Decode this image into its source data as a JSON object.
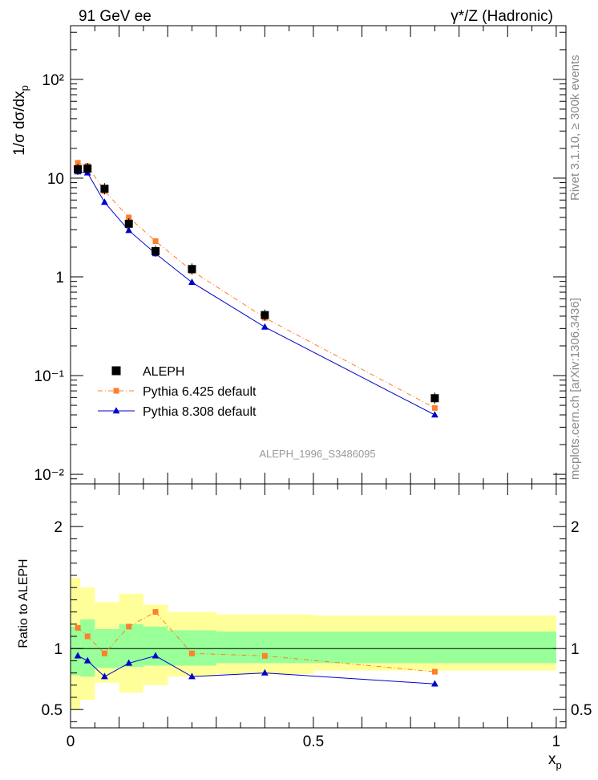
{
  "header": {
    "left": "91 GeV ee",
    "right": "γ*/Z (Hadronic)"
  },
  "side_labels": {
    "rivet": "Rivet 3.1.10, ≥ 300k events",
    "mcplots": "mcplots.cern.ch [arXiv:1306.3436]"
  },
  "analysis_id": "ALEPH_1996_S3486095",
  "chart_data": [
    {
      "type": "scatter",
      "panel": "main",
      "ylabel": "1/σ dσ/dx_p",
      "yscale": "log",
      "ylim": [
        0.008,
        350
      ],
      "xlim": [
        0,
        1.02
      ],
      "yticks": [
        {
          "value": 0.01,
          "label": "10⁻²"
        },
        {
          "value": 0.1,
          "label": "10⁻¹"
        },
        {
          "value": 1,
          "label": "1"
        },
        {
          "value": 10,
          "label": "10"
        },
        {
          "value": 100,
          "label": "10²"
        }
      ],
      "legend_position": "bottom-left",
      "series": [
        {
          "name": "ALEPH",
          "color": "#000000",
          "marker": "square",
          "x": [
            0.015,
            0.035,
            0.07,
            0.12,
            0.175,
            0.25,
            0.4,
            0.75
          ],
          "values": [
            12.3,
            12.5,
            7.8,
            3.45,
            1.82,
            1.2,
            0.41,
            0.059
          ]
        },
        {
          "name": "Pythia 6.425 default",
          "color": "#ff7f2a",
          "marker": "square",
          "line": "dashdot",
          "x": [
            0.015,
            0.035,
            0.07,
            0.12,
            0.175,
            0.25,
            0.4,
            0.75
          ],
          "values": [
            14.3,
            13.3,
            7.4,
            4.0,
            2.3,
            1.15,
            0.385,
            0.047
          ]
        },
        {
          "name": "Pythia 8.308 default",
          "color": "#0000cc",
          "marker": "triangle",
          "line": "solid",
          "x": [
            0.015,
            0.035,
            0.07,
            0.12,
            0.175,
            0.25,
            0.4,
            0.75
          ],
          "values": [
            11.6,
            11.3,
            5.7,
            2.95,
            1.72,
            0.88,
            0.31,
            0.04
          ]
        }
      ]
    },
    {
      "type": "scatter",
      "panel": "ratio",
      "ylabel": "Ratio to ALEPH",
      "xlabel": "x_p",
      "ylim": [
        0.35,
        2.35
      ],
      "xlim": [
        0,
        1.02
      ],
      "yticks": [
        {
          "value": 0.5,
          "label": "0.5"
        },
        {
          "value": 1,
          "label": "1"
        },
        {
          "value": 2,
          "label": "2"
        }
      ],
      "xticks": [
        {
          "value": 0,
          "label": "0"
        },
        {
          "value": 0.5,
          "label": "0.5"
        },
        {
          "value": 1,
          "label": "1"
        }
      ],
      "bins": [
        {
          "lo": 0.0,
          "hi": 0.02,
          "inner": [
            0.78,
            1.18
          ],
          "outer": [
            0.5,
            1.58
          ]
        },
        {
          "lo": 0.02,
          "hi": 0.05,
          "inner": [
            0.77,
            1.24
          ],
          "outer": [
            0.58,
            1.5
          ]
        },
        {
          "lo": 0.05,
          "hi": 0.1,
          "inner": [
            0.84,
            1.16
          ],
          "outer": [
            0.72,
            1.38
          ]
        },
        {
          "lo": 0.1,
          "hi": 0.15,
          "inner": [
            0.85,
            1.2
          ],
          "outer": [
            0.64,
            1.45
          ]
        },
        {
          "lo": 0.15,
          "hi": 0.2,
          "inner": [
            0.86,
            1.18
          ],
          "outer": [
            0.7,
            1.36
          ]
        },
        {
          "lo": 0.2,
          "hi": 0.3,
          "inner": [
            0.86,
            1.15
          ],
          "outer": [
            0.77,
            1.3
          ]
        },
        {
          "lo": 0.3,
          "hi": 0.5,
          "inner": [
            0.88,
            1.14
          ],
          "outer": [
            0.79,
            1.28
          ]
        },
        {
          "lo": 0.5,
          "hi": 1.0,
          "inner": [
            0.88,
            1.14
          ],
          "outer": [
            0.82,
            1.27
          ]
        }
      ],
      "series": [
        {
          "name": "Pythia 6.425 default",
          "color": "#ff7f2a",
          "marker": "square",
          "x": [
            0.015,
            0.035,
            0.07,
            0.12,
            0.175,
            0.25,
            0.4,
            0.75
          ],
          "values": [
            1.17,
            1.1,
            0.96,
            1.18,
            1.3,
            0.96,
            0.94,
            0.81
          ]
        },
        {
          "name": "Pythia 8.308 default",
          "color": "#0000cc",
          "marker": "triangle",
          "x": [
            0.015,
            0.035,
            0.07,
            0.12,
            0.175,
            0.25,
            0.4,
            0.75
          ],
          "values": [
            0.94,
            0.9,
            0.77,
            0.88,
            0.94,
            0.77,
            0.8,
            0.71
          ]
        }
      ]
    }
  ]
}
